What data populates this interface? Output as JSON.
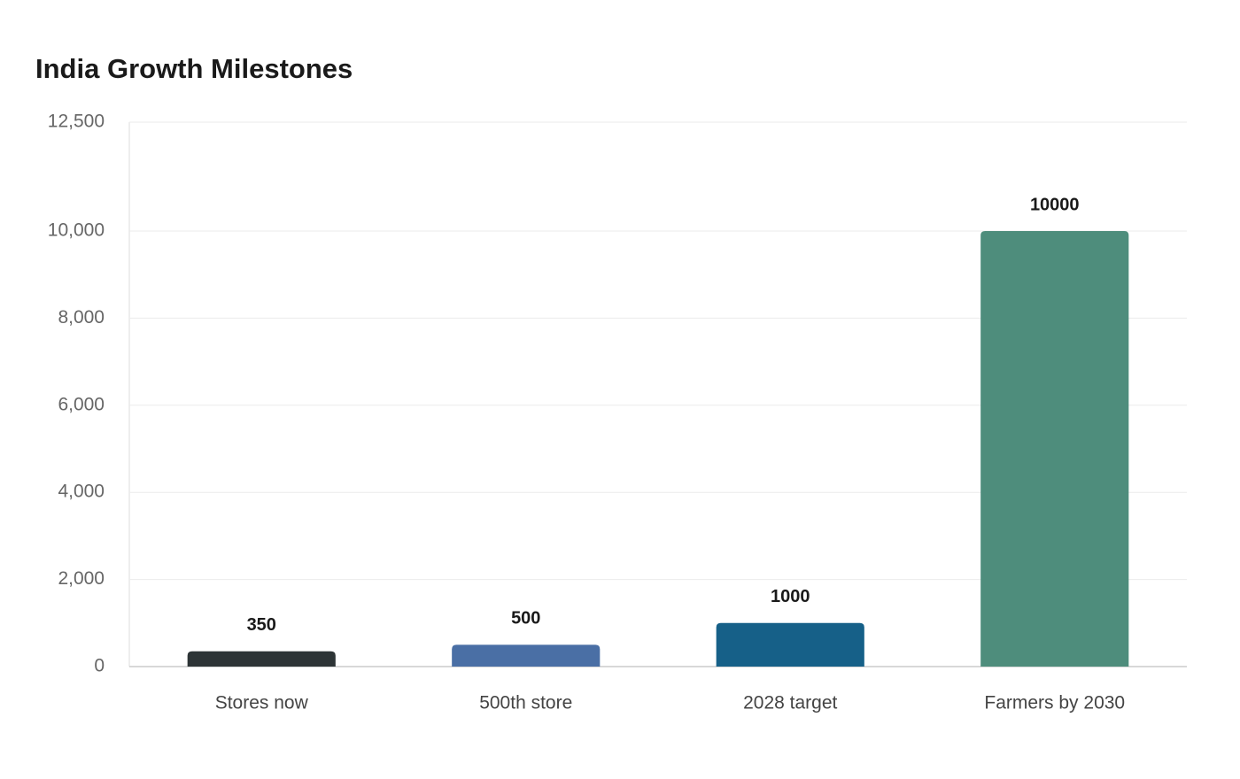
{
  "chart_data": {
    "type": "bar",
    "title": "India Growth Milestones",
    "categories": [
      "Stores now",
      "500th store",
      "2028 target",
      "Farmers by 2030"
    ],
    "values": [
      350,
      500,
      1000,
      10000
    ],
    "colors": [
      "#2d3436",
      "#4a6fa5",
      "#166088",
      "#4e8d7c"
    ],
    "ylim": [
      0,
      12500
    ],
    "yticks": [
      0,
      {
        "value": 2000,
        "label": "2,000"
      },
      {
        "value": 4000,
        "label": "4,000"
      },
      {
        "value": 6000,
        "label": "6,000"
      },
      {
        "value": 8000,
        "label": "8,000"
      },
      {
        "value": 10000,
        "label": "10,000"
      },
      {
        "value": 12500,
        "label": "12,500"
      }
    ],
    "grid": true
  }
}
